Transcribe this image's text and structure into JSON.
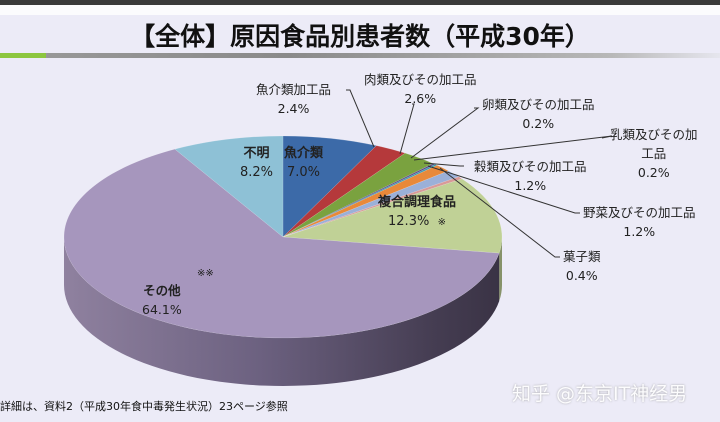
{
  "page": {
    "title": "【全体】原因食品別患者数（平成30年）",
    "footnote": "詳細は、資料2（平成30年食中毒発生状況）23ページ参照",
    "watermark": "知乎 @东京IT神经男",
    "colors": {
      "title_rule_green": "#8cc63f",
      "title_rule_gray": "#8a8a8a",
      "background": "#ecebf7"
    }
  },
  "chart_data": {
    "type": "pie",
    "style": "3d",
    "title": "【全体】原因食品別患者数（平成30年）",
    "start_angle_deg": 0,
    "direction": "clockwise",
    "slices": [
      {
        "label": "魚介類",
        "value": 7.0,
        "display": "7.0%",
        "color": "#3c6aa8"
      },
      {
        "label": "魚介類加工品",
        "value": 2.4,
        "display": "2.4%",
        "color": "#b5393b"
      },
      {
        "label": "肉類及びその加工品",
        "value": 2.6,
        "display": "2.6%",
        "color": "#7aa23f"
      },
      {
        "label": "卵類及びその加工品",
        "value": 0.2,
        "display": "0.2%",
        "color": "#5c4d8c"
      },
      {
        "label": "乳類及びその加工品",
        "value": 0.2,
        "display": "0.2%",
        "color": "#3a9ab0"
      },
      {
        "label": "穀類及びその加工品",
        "value": 1.2,
        "display": "1.2%",
        "color": "#e8893a"
      },
      {
        "label": "野菜及びその加工品",
        "value": 1.2,
        "display": "1.2%",
        "color": "#9bb0d8"
      },
      {
        "label": "菓子類",
        "value": 0.4,
        "display": "0.4%",
        "color": "#d89a98"
      },
      {
        "label": "複合調理食品",
        "value": 12.3,
        "display": "12.3%",
        "note": "※",
        "color": "#c0d196"
      },
      {
        "label": "その他",
        "value": 64.1,
        "display": "64.1%",
        "note": "※※",
        "color": "#a696bd"
      },
      {
        "label": "不明",
        "value": 8.2,
        "display": "8.2%",
        "color": "#8ec1d6"
      }
    ]
  },
  "labels": {
    "gyokai": {
      "name": "魚介類",
      "pct": "7.0%"
    },
    "gyokai_kako": {
      "name": "魚介類加工品",
      "pct": "2.4%"
    },
    "niku": {
      "name": "肉類及びその加工品",
      "pct": "2.6%"
    },
    "tamago": {
      "name": "卵類及びその加工品",
      "pct": "0.2%"
    },
    "nyu_line1": "乳類及びその加",
    "nyu_line2": "工品",
    "nyu_pct": "0.2%",
    "koku": {
      "name": "穀類及びその加工品",
      "pct": "1.2%"
    },
    "yasai": {
      "name": "野菜及びその加工品",
      "pct": "1.2%"
    },
    "kashi": {
      "name": "菓子類",
      "pct": "0.4%"
    },
    "fukugo": {
      "name": "複合調理食品",
      "pct": "12.3%",
      "note": "※"
    },
    "sonota": {
      "name": "その他",
      "pct": "64.1%",
      "note": "※※"
    },
    "fumei": {
      "name": "不明",
      "pct": "8.2%"
    }
  }
}
